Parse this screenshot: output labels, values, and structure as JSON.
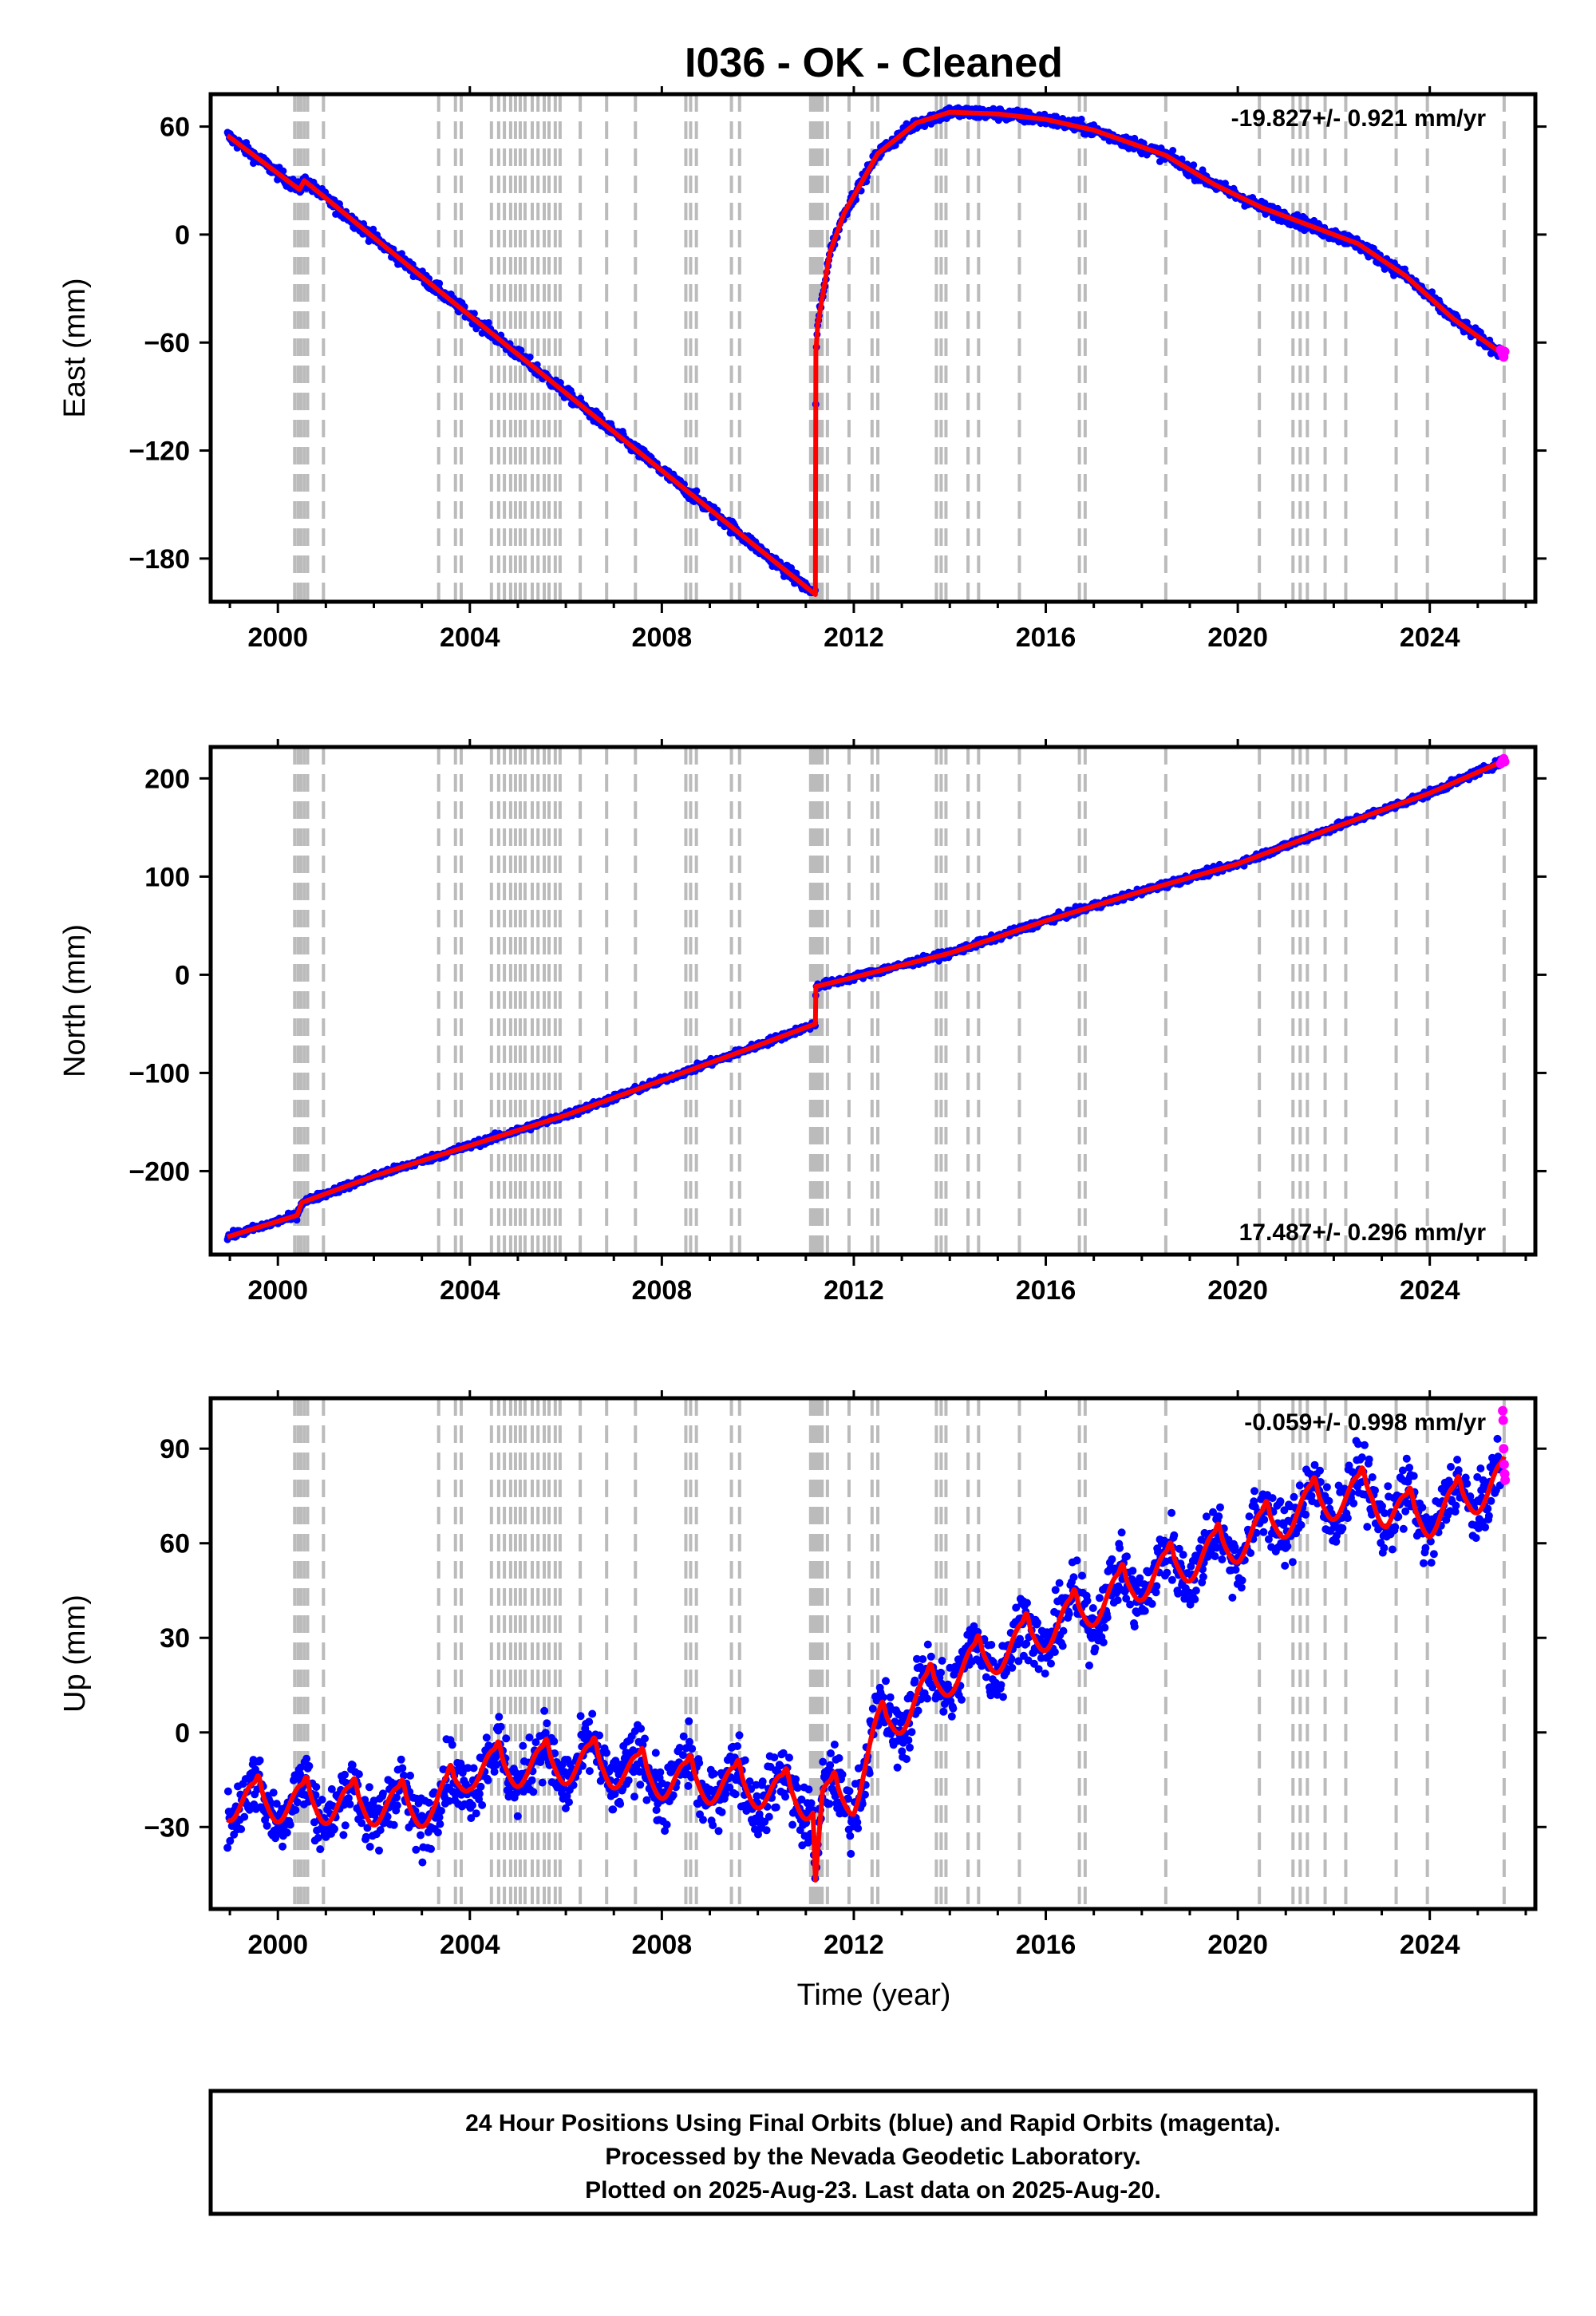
{
  "title": "I036  - OK - Cleaned",
  "colors": {
    "final_orbits": "#0000ff",
    "rapid_orbits": "#ff00ff",
    "model": "#ff0000",
    "event_lines": "#bbbbbb",
    "frame": "#000000"
  },
  "event_years": [
    2000.35,
    2000.42,
    2000.48,
    2000.55,
    2000.62,
    2000.95,
    2003.35,
    2003.7,
    2003.82,
    2004.45,
    2004.6,
    2004.72,
    2004.85,
    2004.95,
    2005.05,
    2005.15,
    2005.3,
    2005.42,
    2005.55,
    2005.65,
    2005.78,
    2005.88,
    2006.3,
    2006.85,
    2007.45,
    2008.5,
    2008.6,
    2008.72,
    2009.45,
    2009.62,
    2011.1,
    2011.16,
    2011.22,
    2011.28,
    2011.34,
    2011.45,
    2011.9,
    2012.38,
    2012.5,
    2013.72,
    2013.82,
    2013.92,
    2014.38,
    2014.6,
    2015.45,
    2016.7,
    2016.82,
    2018.5,
    2020.45,
    2021.15,
    2021.3,
    2021.45,
    2021.82,
    2022.25,
    2023.3,
    2023.95,
    2025.55
  ],
  "chart_data": [
    {
      "type": "scatter",
      "panel": "east",
      "ylabel": "East (mm)",
      "xlim": [
        1998.6,
        2026.2
      ],
      "ylim": [
        -204,
        78
      ],
      "yticks": [
        -180,
        -120,
        -60,
        0,
        60
      ],
      "xticks": [
        2000,
        2004,
        2008,
        2012,
        2016,
        2020,
        2024
      ],
      "rate_label": "-19.827+/- 0.921 mm/yr",
      "rate_position": "top-right",
      "model_points": [
        [
          1998.95,
          55
        ],
        [
          2000.45,
          25
        ],
        [
          2000.55,
          30
        ],
        [
          2003.3,
          -30
        ],
        [
          2011.2,
          -200
        ],
        [
          2011.21,
          -65
        ],
        [
          2011.25,
          -50
        ],
        [
          2011.5,
          -10
        ],
        [
          2011.8,
          12
        ],
        [
          2012.5,
          45
        ],
        [
          2013.3,
          62
        ],
        [
          2014.0,
          68
        ],
        [
          2015.0,
          67
        ],
        [
          2016.0,
          64
        ],
        [
          2017.0,
          58
        ],
        [
          2018.5,
          44
        ],
        [
          2019.5,
          28
        ],
        [
          2020.5,
          15
        ],
        [
          2021.5,
          5
        ],
        [
          2022.5,
          -5
        ],
        [
          2023.5,
          -23
        ],
        [
          2024.5,
          -47
        ],
        [
          2025.55,
          -67
        ]
      ],
      "rapid_points": [
        [
          2025.48,
          -64
        ],
        [
          2025.51,
          -66
        ],
        [
          2025.54,
          -68
        ],
        [
          2025.56,
          -65
        ]
      ],
      "noise_mm": 2.5
    },
    {
      "type": "scatter",
      "panel": "north",
      "ylabel": "North (mm)",
      "xlim": [
        1998.6,
        2026.2
      ],
      "ylim": [
        -285,
        232
      ],
      "yticks": [
        -200,
        -100,
        0,
        100,
        200
      ],
      "xticks": [
        2000,
        2004,
        2008,
        2012,
        2016,
        2020,
        2024
      ],
      "rate_label": "17.487+/- 0.296 mm/yr",
      "rate_position": "bottom-right",
      "model_points": [
        [
          1998.95,
          -267
        ],
        [
          2000.4,
          -245
        ],
        [
          2000.5,
          -232
        ],
        [
          2002.0,
          -205
        ],
        [
          2006.0,
          -143
        ],
        [
          2010.0,
          -72
        ],
        [
          2011.2,
          -50
        ],
        [
          2011.21,
          -12
        ],
        [
          2011.8,
          -5
        ],
        [
          2014.0,
          22
        ],
        [
          2016.0,
          55
        ],
        [
          2018.0,
          85
        ],
        [
          2020.0,
          113
        ],
        [
          2022.0,
          150
        ],
        [
          2024.0,
          185
        ],
        [
          2025.55,
          218
        ]
      ],
      "rapid_points": [
        [
          2025.48,
          215
        ],
        [
          2025.51,
          218
        ],
        [
          2025.54,
          220
        ],
        [
          2025.56,
          217
        ]
      ],
      "noise_mm": 2.5
    },
    {
      "type": "scatter",
      "panel": "up",
      "ylabel": "Up (mm)",
      "xlabel": "Time (year)",
      "xlim": [
        1998.6,
        2026.2
      ],
      "ylim": [
        -56,
        106
      ],
      "yticks": [
        -30,
        0,
        30,
        60,
        90
      ],
      "xticks": [
        2000,
        2004,
        2008,
        2012,
        2016,
        2020,
        2024
      ],
      "rate_label": "-0.059+/- 0.998 mm/yr",
      "rate_position": "top-right",
      "model_points": [
        [
          1998.95,
          -22
        ],
        [
          2003.3,
          -24
        ],
        [
          2004.0,
          -12
        ],
        [
          2006.5,
          -10
        ],
        [
          2008.0,
          -15
        ],
        [
          2010.0,
          -18
        ],
        [
          2011.15,
          -22
        ],
        [
          2011.2,
          -45
        ],
        [
          2011.35,
          -22
        ],
        [
          2012.0,
          -20
        ],
        [
          2012.5,
          0
        ],
        [
          2014.0,
          18
        ],
        [
          2016.0,
          32
        ],
        [
          2018.0,
          48
        ],
        [
          2020.0,
          60
        ],
        [
          2021.5,
          72
        ],
        [
          2022.8,
          76
        ],
        [
          2023.1,
          70
        ],
        [
          2024.0,
          68
        ],
        [
          2025.55,
          80
        ]
      ],
      "rapid_points": [
        [
          2025.52,
          102
        ],
        [
          2025.53,
          99
        ],
        [
          2025.54,
          90
        ],
        [
          2025.55,
          85
        ],
        [
          2025.56,
          82
        ],
        [
          2025.57,
          80
        ]
      ],
      "noise_mm": 7,
      "seasonal_amp_mm": 6
    }
  ],
  "footer": {
    "line1": "24 Hour Positions Using Final Orbits (blue) and Rapid Orbits (magenta).",
    "line2": "Processed by the Nevada Geodetic Laboratory.",
    "line3": "Plotted on 2025-Aug-23. Last data on 2025-Aug-20."
  }
}
